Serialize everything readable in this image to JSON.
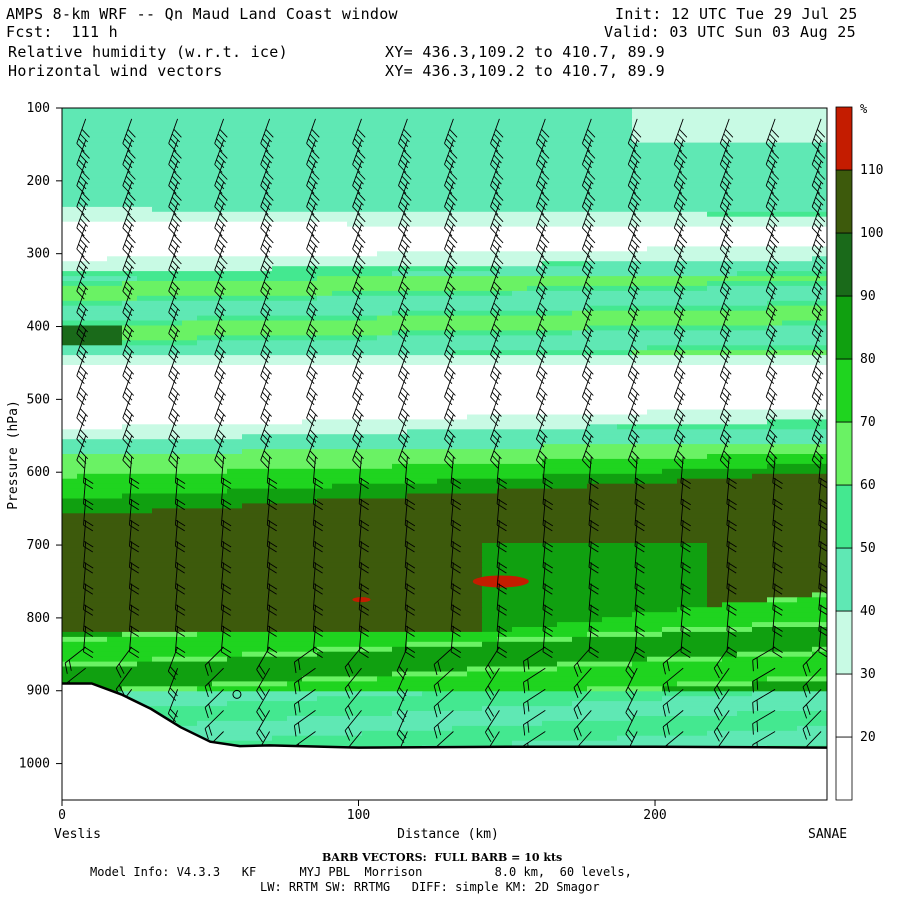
{
  "header": {
    "title": "AMPS 8-km WRF -- Qn Maud Land Coast window",
    "forecast": "Fcst:  111 h",
    "init": "Init: 12 UTC Tue 29 Jul 25",
    "valid": "Valid: 03 UTC Sun 03 Aug 25",
    "field1": "Relative humidity (w.r.t. ice)",
    "field2": "Horizontal wind vectors",
    "xy1": "XY= 436.3,109.2 to 410.7, 89.9",
    "xy2": "XY= 436.3,109.2 to 410.7, 89.9"
  },
  "chart_data": {
    "type": "heatmap",
    "xlabel": "Distance (km)",
    "ylabel": "Pressure (hPa)",
    "xlim": [
      0,
      258
    ],
    "ylim": [
      1050,
      100
    ],
    "x_ticks": [
      0,
      100,
      200
    ],
    "y_ticks": [
      100,
      200,
      300,
      400,
      500,
      600,
      700,
      800,
      900,
      1000
    ],
    "x_endpoints": {
      "left": "Veslis",
      "right": "SANAE"
    },
    "colorbar": {
      "unit": "%",
      "levels": [
        20,
        30,
        40,
        50,
        60,
        70,
        80,
        90,
        100,
        110
      ],
      "colors": [
        "#ffffff",
        "#ffffff",
        "#c8fae4",
        "#5fe8b4",
        "#44e890",
        "#6af264",
        "#1fd41f",
        "#10a010",
        "#1a6a1a",
        "#3d5a0c",
        "#c41c00"
      ]
    },
    "series": [
      {
        "name": "white band (RH < 30%)",
        "rh": "< 30",
        "layers_hPa": [
          [
            255,
            310
          ],
          [
            455,
            540
          ]
        ]
      },
      {
        "name": "dark olive band (RH 100-110%)",
        "rh": "100-110",
        "layer_hPa": [
          620,
          820
        ]
      },
      {
        "name": "red patches (RH > 110%)",
        "rh": "> 110",
        "locations": [
          {
            "x_km": 148,
            "p_hPa": 750
          },
          {
            "x_km": 101,
            "p_hPa": 775
          }
        ]
      }
    ],
    "terrain_surface_hPa": [
      {
        "x": 0,
        "p": 890
      },
      {
        "x": 10,
        "p": 890
      },
      {
        "x": 20,
        "p": 905
      },
      {
        "x": 30,
        "p": 925
      },
      {
        "x": 40,
        "p": 950
      },
      {
        "x": 50,
        "p": 970
      },
      {
        "x": 60,
        "p": 976
      },
      {
        "x": 70,
        "p": 975
      },
      {
        "x": 100,
        "p": 978
      },
      {
        "x": 150,
        "p": 977
      },
      {
        "x": 200,
        "p": 977
      },
      {
        "x": 258,
        "p": 978
      }
    ],
    "wind_barbs_note": "columns every ~15 km, barbs every ~30 hPa; strongest (40-50 kt) in upper troposphere, weaker near surface",
    "marker": {
      "type": "circle",
      "x_km": 59,
      "p_hPa": 905
    }
  },
  "footer": {
    "barb_note": "BARB VECTORS:  FULL BARB = 10 kts",
    "model_info": "Model Info: V4.3.3   KF      MYJ PBL  Morrison          8.0 km,  60 levels,",
    "physics": "LW: RRTM SW: RRTMG   DIFF: simple KM: 2D Smagor"
  }
}
